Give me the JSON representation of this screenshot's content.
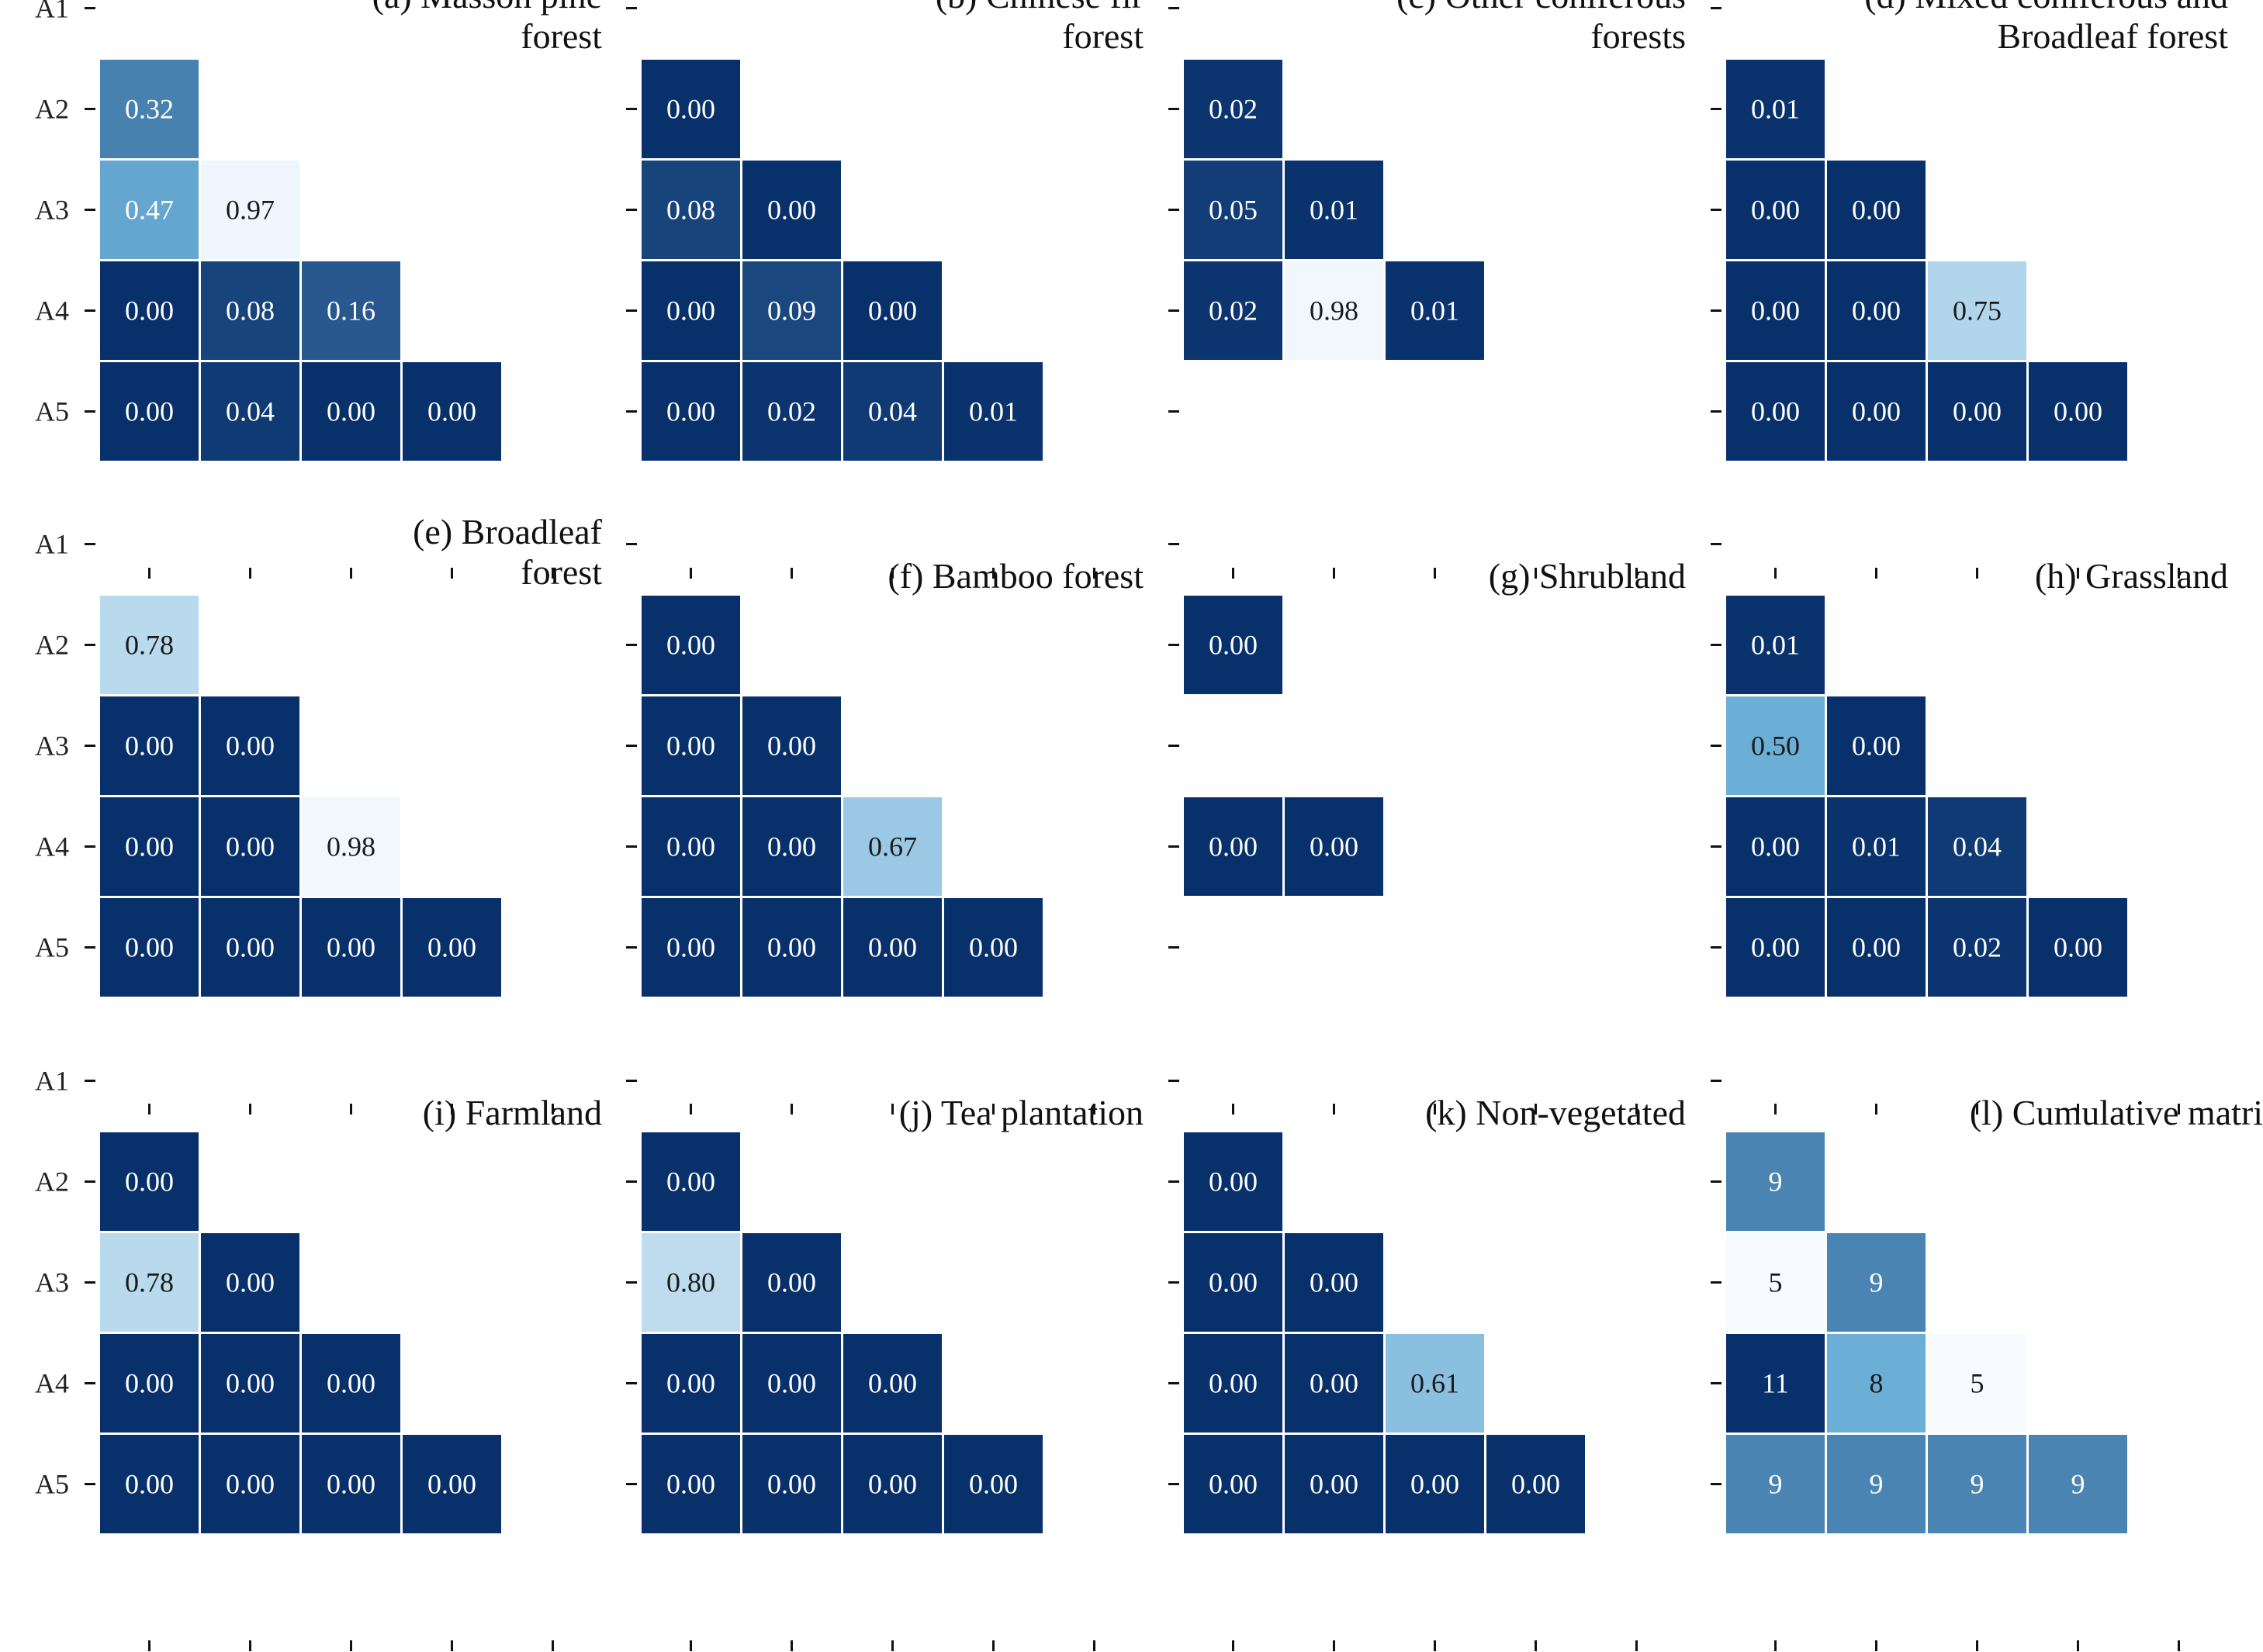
{
  "chart_data": {
    "type": "heatmap",
    "row_labels": [
      "A1",
      "A2",
      "A3",
      "A4",
      "A5"
    ],
    "col_labels": [
      "A1",
      "A2",
      "A3",
      "A4",
      "A5"
    ],
    "colormap": {
      "low": "#f7fbff",
      "mid": "#6baed6",
      "high": "#08306b"
    },
    "panels": [
      {
        "title_lines": [
          "(a) Masson pine",
          "forest"
        ],
        "show_row_labels": true,
        "show_col_labels": false,
        "value_range": [
          0,
          1
        ],
        "cells": [
          {
            "row": 1,
            "col": 0,
            "value": 0.32,
            "label": "0.32"
          },
          {
            "row": 2,
            "col": 0,
            "value": 0.47,
            "label": "0.47"
          },
          {
            "row": 2,
            "col": 1,
            "value": 0.97,
            "label": "0.97"
          },
          {
            "row": 3,
            "col": 0,
            "value": 0.0,
            "label": "0.00"
          },
          {
            "row": 3,
            "col": 1,
            "value": 0.08,
            "label": "0.08"
          },
          {
            "row": 3,
            "col": 2,
            "value": 0.16,
            "label": "0.16"
          },
          {
            "row": 4,
            "col": 0,
            "value": 0.0,
            "label": "0.00"
          },
          {
            "row": 4,
            "col": 1,
            "value": 0.04,
            "label": "0.04"
          },
          {
            "row": 4,
            "col": 2,
            "value": 0.0,
            "label": "0.00"
          },
          {
            "row": 4,
            "col": 3,
            "value": 0.0,
            "label": "0.00"
          }
        ]
      },
      {
        "title_lines": [
          "(b) Chinese fir",
          "forest"
        ],
        "show_row_labels": false,
        "show_col_labels": false,
        "value_range": [
          0,
          1
        ],
        "cells": [
          {
            "row": 1,
            "col": 0,
            "value": 0.0,
            "label": "0.00"
          },
          {
            "row": 2,
            "col": 0,
            "value": 0.08,
            "label": "0.08"
          },
          {
            "row": 2,
            "col": 1,
            "value": 0.0,
            "label": "0.00"
          },
          {
            "row": 3,
            "col": 0,
            "value": 0.0,
            "label": "0.00"
          },
          {
            "row": 3,
            "col": 1,
            "value": 0.09,
            "label": "0.09"
          },
          {
            "row": 3,
            "col": 2,
            "value": 0.0,
            "label": "0.00"
          },
          {
            "row": 4,
            "col": 0,
            "value": 0.0,
            "label": "0.00"
          },
          {
            "row": 4,
            "col": 1,
            "value": 0.02,
            "label": "0.02"
          },
          {
            "row": 4,
            "col": 2,
            "value": 0.04,
            "label": "0.04"
          },
          {
            "row": 4,
            "col": 3,
            "value": 0.01,
            "label": "0.01"
          }
        ]
      },
      {
        "title_lines": [
          "(c) Other coniferous",
          "forests"
        ],
        "show_row_labels": false,
        "show_col_labels": false,
        "value_range": [
          0,
          1
        ],
        "cells": [
          {
            "row": 1,
            "col": 0,
            "value": 0.02,
            "label": "0.02"
          },
          {
            "row": 2,
            "col": 0,
            "value": 0.05,
            "label": "0.05"
          },
          {
            "row": 2,
            "col": 1,
            "value": 0.01,
            "label": "0.01"
          },
          {
            "row": 3,
            "col": 0,
            "value": 0.02,
            "label": "0.02"
          },
          {
            "row": 3,
            "col": 1,
            "value": 0.98,
            "label": "0.98"
          },
          {
            "row": 3,
            "col": 2,
            "value": 0.01,
            "label": "0.01"
          }
        ]
      },
      {
        "title_lines": [
          "(d) Mixed coniferous and",
          "Broadleaf forest"
        ],
        "show_row_labels": false,
        "show_col_labels": false,
        "value_range": [
          0,
          1
        ],
        "cells": [
          {
            "row": 1,
            "col": 0,
            "value": 0.01,
            "label": "0.01"
          },
          {
            "row": 2,
            "col": 0,
            "value": 0.0,
            "label": "0.00"
          },
          {
            "row": 2,
            "col": 1,
            "value": 0.0,
            "label": "0.00"
          },
          {
            "row": 3,
            "col": 0,
            "value": 0.0,
            "label": "0.00"
          },
          {
            "row": 3,
            "col": 1,
            "value": 0.0,
            "label": "0.00"
          },
          {
            "row": 3,
            "col": 2,
            "value": 0.75,
            "label": "0.75"
          },
          {
            "row": 4,
            "col": 0,
            "value": 0.0,
            "label": "0.00"
          },
          {
            "row": 4,
            "col": 1,
            "value": 0.0,
            "label": "0.00"
          },
          {
            "row": 4,
            "col": 2,
            "value": 0.0,
            "label": "0.00"
          },
          {
            "row": 4,
            "col": 3,
            "value": 0.0,
            "label": "0.00"
          }
        ]
      },
      {
        "title_lines": [
          "(e) Broadleaf",
          "forest"
        ],
        "show_row_labels": true,
        "show_col_labels": false,
        "value_range": [
          0,
          1
        ],
        "cells": [
          {
            "row": 1,
            "col": 0,
            "value": 0.78,
            "label": "0.78"
          },
          {
            "row": 2,
            "col": 0,
            "value": 0.0,
            "label": "0.00"
          },
          {
            "row": 2,
            "col": 1,
            "value": 0.0,
            "label": "0.00"
          },
          {
            "row": 3,
            "col": 0,
            "value": 0.0,
            "label": "0.00"
          },
          {
            "row": 3,
            "col": 1,
            "value": 0.0,
            "label": "0.00"
          },
          {
            "row": 3,
            "col": 2,
            "value": 0.98,
            "label": "0.98"
          },
          {
            "row": 4,
            "col": 0,
            "value": 0.0,
            "label": "0.00"
          },
          {
            "row": 4,
            "col": 1,
            "value": 0.0,
            "label": "0.00"
          },
          {
            "row": 4,
            "col": 2,
            "value": 0.0,
            "label": "0.00"
          },
          {
            "row": 4,
            "col": 3,
            "value": 0.0,
            "label": "0.00"
          }
        ]
      },
      {
        "title_lines": [
          "(f) Bamboo forest"
        ],
        "show_row_labels": false,
        "show_col_labels": false,
        "value_range": [
          0,
          1
        ],
        "cells": [
          {
            "row": 1,
            "col": 0,
            "value": 0.0,
            "label": "0.00"
          },
          {
            "row": 2,
            "col": 0,
            "value": 0.0,
            "label": "0.00"
          },
          {
            "row": 2,
            "col": 1,
            "value": 0.0,
            "label": "0.00"
          },
          {
            "row": 3,
            "col": 0,
            "value": 0.0,
            "label": "0.00"
          },
          {
            "row": 3,
            "col": 1,
            "value": 0.0,
            "label": "0.00"
          },
          {
            "row": 3,
            "col": 2,
            "value": 0.67,
            "label": "0.67"
          },
          {
            "row": 4,
            "col": 0,
            "value": 0.0,
            "label": "0.00"
          },
          {
            "row": 4,
            "col": 1,
            "value": 0.0,
            "label": "0.00"
          },
          {
            "row": 4,
            "col": 2,
            "value": 0.0,
            "label": "0.00"
          },
          {
            "row": 4,
            "col": 3,
            "value": 0.0,
            "label": "0.00"
          }
        ]
      },
      {
        "title_lines": [
          "(g) Shrubland"
        ],
        "show_row_labels": false,
        "show_col_labels": false,
        "value_range": [
          0,
          1
        ],
        "cells": [
          {
            "row": 1,
            "col": 0,
            "value": 0.0,
            "label": "0.00"
          },
          {
            "row": 3,
            "col": 0,
            "value": 0.0,
            "label": "0.00"
          },
          {
            "row": 3,
            "col": 1,
            "value": 0.0,
            "label": "0.00"
          }
        ]
      },
      {
        "title_lines": [
          "(h) Grassland"
        ],
        "show_row_labels": false,
        "show_col_labels": false,
        "value_range": [
          0,
          1
        ],
        "cells": [
          {
            "row": 1,
            "col": 0,
            "value": 0.01,
            "label": "0.01"
          },
          {
            "row": 2,
            "col": 0,
            "value": 0.5,
            "label": "0.50"
          },
          {
            "row": 2,
            "col": 1,
            "value": 0.0,
            "label": "0.00"
          },
          {
            "row": 3,
            "col": 0,
            "value": 0.0,
            "label": "0.00"
          },
          {
            "row": 3,
            "col": 1,
            "value": 0.01,
            "label": "0.01"
          },
          {
            "row": 3,
            "col": 2,
            "value": 0.04,
            "label": "0.04"
          },
          {
            "row": 4,
            "col": 0,
            "value": 0.0,
            "label": "0.00"
          },
          {
            "row": 4,
            "col": 1,
            "value": 0.0,
            "label": "0.00"
          },
          {
            "row": 4,
            "col": 2,
            "value": 0.02,
            "label": "0.02"
          },
          {
            "row": 4,
            "col": 3,
            "value": 0.0,
            "label": "0.00"
          }
        ]
      },
      {
        "title_lines": [
          "(i) Farmland"
        ],
        "show_row_labels": true,
        "show_col_labels": true,
        "value_range": [
          0,
          1
        ],
        "cells": [
          {
            "row": 1,
            "col": 0,
            "value": 0.0,
            "label": "0.00"
          },
          {
            "row": 2,
            "col": 0,
            "value": 0.78,
            "label": "0.78"
          },
          {
            "row": 2,
            "col": 1,
            "value": 0.0,
            "label": "0.00"
          },
          {
            "row": 3,
            "col": 0,
            "value": 0.0,
            "label": "0.00"
          },
          {
            "row": 3,
            "col": 1,
            "value": 0.0,
            "label": "0.00"
          },
          {
            "row": 3,
            "col": 2,
            "value": 0.0,
            "label": "0.00"
          },
          {
            "row": 4,
            "col": 0,
            "value": 0.0,
            "label": "0.00"
          },
          {
            "row": 4,
            "col": 1,
            "value": 0.0,
            "label": "0.00"
          },
          {
            "row": 4,
            "col": 2,
            "value": 0.0,
            "label": "0.00"
          },
          {
            "row": 4,
            "col": 3,
            "value": 0.0,
            "label": "0.00"
          }
        ]
      },
      {
        "title_lines": [
          "(j) Tea plantation"
        ],
        "show_row_labels": false,
        "show_col_labels": true,
        "value_range": [
          0,
          1
        ],
        "cells": [
          {
            "row": 1,
            "col": 0,
            "value": 0.0,
            "label": "0.00"
          },
          {
            "row": 2,
            "col": 0,
            "value": 0.8,
            "label": "0.80"
          },
          {
            "row": 2,
            "col": 1,
            "value": 0.0,
            "label": "0.00"
          },
          {
            "row": 3,
            "col": 0,
            "value": 0.0,
            "label": "0.00"
          },
          {
            "row": 3,
            "col": 1,
            "value": 0.0,
            "label": "0.00"
          },
          {
            "row": 3,
            "col": 2,
            "value": 0.0,
            "label": "0.00"
          },
          {
            "row": 4,
            "col": 0,
            "value": 0.0,
            "label": "0.00"
          },
          {
            "row": 4,
            "col": 1,
            "value": 0.0,
            "label": "0.00"
          },
          {
            "row": 4,
            "col": 2,
            "value": 0.0,
            "label": "0.00"
          },
          {
            "row": 4,
            "col": 3,
            "value": 0.0,
            "label": "0.00"
          }
        ]
      },
      {
        "title_lines": [
          "(k) Non-vegetated"
        ],
        "show_row_labels": false,
        "show_col_labels": true,
        "value_range": [
          0,
          1
        ],
        "cells": [
          {
            "row": 1,
            "col": 0,
            "value": 0.0,
            "label": "0.00"
          },
          {
            "row": 2,
            "col": 0,
            "value": 0.0,
            "label": "0.00"
          },
          {
            "row": 2,
            "col": 1,
            "value": 0.0,
            "label": "0.00"
          },
          {
            "row": 3,
            "col": 0,
            "value": 0.0,
            "label": "0.00"
          },
          {
            "row": 3,
            "col": 1,
            "value": 0.0,
            "label": "0.00"
          },
          {
            "row": 3,
            "col": 2,
            "value": 0.61,
            "label": "0.61"
          },
          {
            "row": 4,
            "col": 0,
            "value": 0.0,
            "label": "0.00"
          },
          {
            "row": 4,
            "col": 1,
            "value": 0.0,
            "label": "0.00"
          },
          {
            "row": 4,
            "col": 2,
            "value": 0.0,
            "label": "0.00"
          },
          {
            "row": 4,
            "col": 3,
            "value": 0.0,
            "label": "0.00"
          }
        ]
      },
      {
        "title_lines": [
          "(l) Cumulative matrix"
        ],
        "show_row_labels": false,
        "show_col_labels": true,
        "value_range": [
          5,
          11
        ],
        "invert": true,
        "cells": [
          {
            "row": 1,
            "col": 0,
            "value": 9,
            "label": "9"
          },
          {
            "row": 2,
            "col": 0,
            "value": 5,
            "label": "5"
          },
          {
            "row": 2,
            "col": 1,
            "value": 9,
            "label": "9"
          },
          {
            "row": 3,
            "col": 0,
            "value": 11,
            "label": "11"
          },
          {
            "row": 3,
            "col": 1,
            "value": 8,
            "label": "8"
          },
          {
            "row": 3,
            "col": 2,
            "value": 5,
            "label": "5"
          },
          {
            "row": 4,
            "col": 0,
            "value": 9,
            "label": "9"
          },
          {
            "row": 4,
            "col": 1,
            "value": 9,
            "label": "9"
          },
          {
            "row": 4,
            "col": 2,
            "value": 9,
            "label": "9"
          },
          {
            "row": 4,
            "col": 3,
            "value": 9,
            "label": "9"
          }
        ]
      }
    ]
  }
}
